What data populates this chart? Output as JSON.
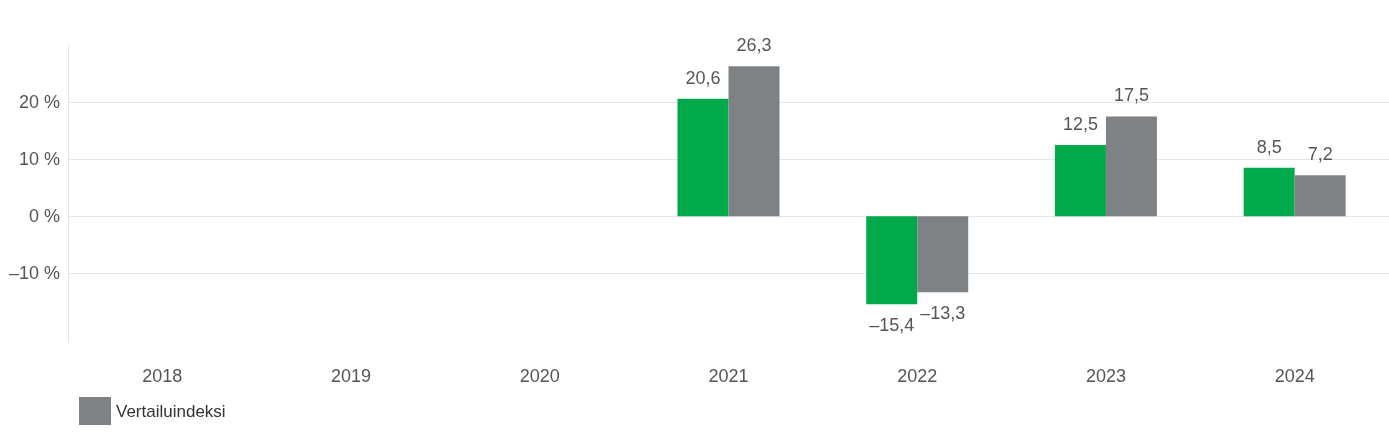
{
  "chart_data": {
    "type": "bar",
    "categories": [
      "2018",
      "2019",
      "2020",
      "2021",
      "2022",
      "2023",
      "2024"
    ],
    "series": [
      {
        "color": "#00a94a",
        "values": [
          null,
          null,
          null,
          20.6,
          -15.4,
          12.5,
          8.5
        ],
        "value_labels": [
          null,
          null,
          null,
          "20,6",
          "–15,4",
          "12,5",
          "8,5"
        ]
      },
      {
        "name": "Vertailuindeksi",
        "color": "#7f8285",
        "values": [
          null,
          null,
          null,
          26.3,
          -13.3,
          17.5,
          7.2
        ],
        "value_labels": [
          null,
          null,
          null,
          "26,3",
          "–13,3",
          "17,5",
          "7,2"
        ]
      }
    ],
    "yticks": [
      {
        "value": -10,
        "label": "–10 %"
      },
      {
        "value": 0,
        "label": "0 %"
      },
      {
        "value": 10,
        "label": "10 %"
      },
      {
        "value": 20,
        "label": "20 %"
      }
    ],
    "ylim": [
      -22,
      30
    ],
    "grid": "y",
    "legend": "bottom left"
  }
}
